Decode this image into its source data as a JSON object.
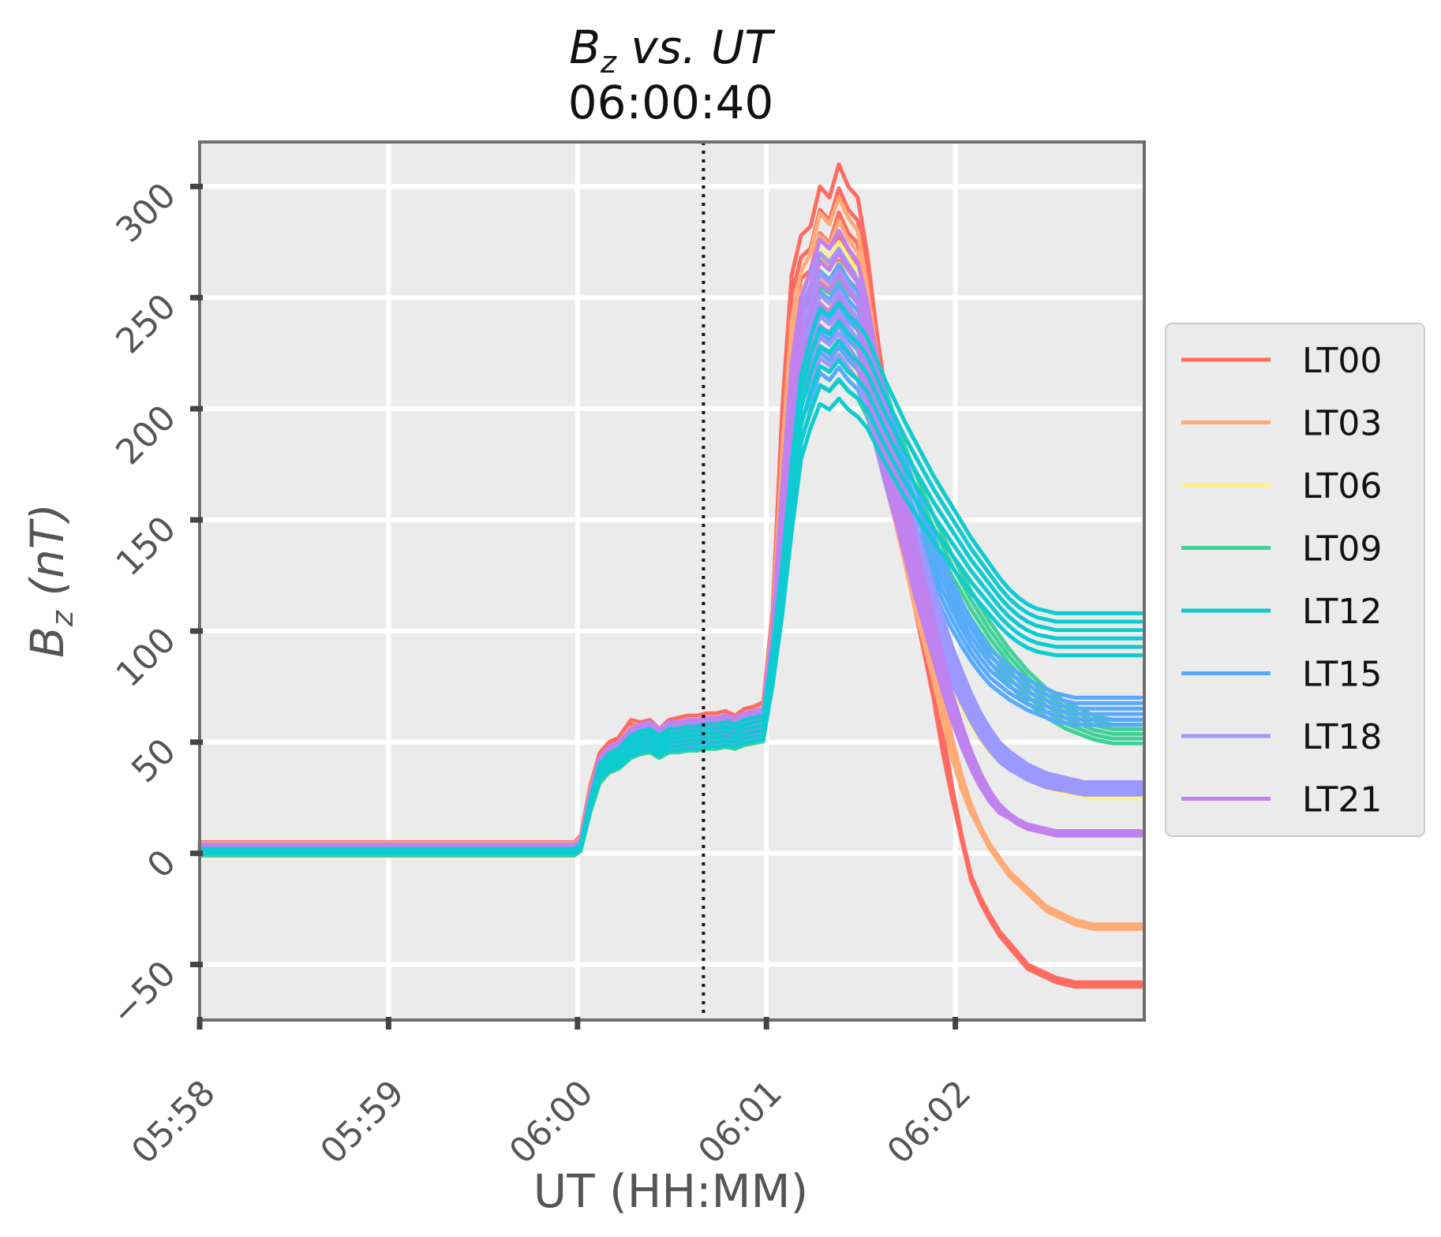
{
  "chart_data": {
    "type": "line",
    "title": "B_z vs. UT",
    "title_main": "B",
    "title_sub": "z",
    "title_rest": " vs.  UT",
    "subtitle": "06:00:40",
    "xlabel": "UT (HH:MM)",
    "ylabel": "B_z (nT)",
    "ylabel_main": "B",
    "ylabel_sub": "z",
    "ylabel_rest": " (nT)",
    "xlim": [
      0,
      300
    ],
    "ylim": [
      -75,
      320
    ],
    "x_units": "seconds since 05:58:00",
    "x_ticks": [
      {
        "value": 0,
        "label": "05:58"
      },
      {
        "value": 60,
        "label": "05:59"
      },
      {
        "value": 120,
        "label": "06:00"
      },
      {
        "value": 180,
        "label": "06:01"
      },
      {
        "value": 240,
        "label": "06:02"
      }
    ],
    "y_ticks": [
      {
        "value": -50,
        "label": "−50"
      },
      {
        "value": 0,
        "label": "0"
      },
      {
        "value": 50,
        "label": "50"
      },
      {
        "value": 100,
        "label": "100"
      },
      {
        "value": 150,
        "label": "150"
      },
      {
        "value": 200,
        "label": "200"
      },
      {
        "value": 250,
        "label": "250"
      },
      {
        "value": 300,
        "label": "300"
      }
    ],
    "vline": {
      "x": 160,
      "label": "06:00:40",
      "style": "dotted",
      "color": "#111111"
    },
    "grid": true,
    "background": "#ebebeb",
    "legend_position": "right-center",
    "series_x": [
      0,
      60,
      119,
      121,
      124,
      127,
      130,
      133,
      137,
      140,
      143,
      146,
      149,
      152,
      155,
      158,
      161,
      164,
      167,
      170,
      173,
      176,
      179,
      182,
      185,
      188,
      191,
      194,
      197,
      200,
      203,
      206,
      209,
      212,
      215,
      218,
      221,
      224,
      227,
      230,
      233,
      236,
      239,
      242,
      245,
      248,
      251,
      254,
      257,
      260,
      263,
      266,
      269,
      272,
      275,
      278,
      281,
      284,
      287,
      290,
      293,
      296,
      299
    ],
    "series": [
      {
        "name": "LT00",
        "color": "#ff6b61",
        "values": [
          5,
          5,
          5,
          8,
          30,
          45,
          50,
          52,
          60,
          59,
          60,
          56,
          60,
          61,
          62,
          62,
          63,
          63,
          64,
          62,
          65,
          66,
          68,
          110,
          200,
          260,
          278,
          282,
          300,
          295,
          310,
          300,
          295,
          270,
          235,
          205,
          185,
          160,
          135,
          110,
          85,
          55,
          30,
          8,
          -10,
          -20,
          -28,
          -35,
          -40,
          -45,
          -50,
          -52,
          -54,
          -56,
          -57,
          -58,
          -58,
          -58,
          -58,
          -58,
          -58,
          -58,
          -58
        ]
      },
      {
        "name": "LT03",
        "color": "#ffab78",
        "values": [
          4.5,
          4.5,
          4.5,
          7,
          28,
          43,
          48,
          50,
          57,
          57,
          58,
          55,
          58,
          59,
          60,
          60,
          61,
          61,
          62,
          61,
          63,
          64,
          66,
          105,
          180,
          240,
          262,
          270,
          288,
          283,
          295,
          286,
          280,
          255,
          225,
          200,
          180,
          158,
          135,
          115,
          95,
          72,
          52,
          35,
          22,
          12,
          4,
          -2,
          -8,
          -12,
          -16,
          -20,
          -24,
          -26,
          -28,
          -30,
          -31,
          -32,
          -32,
          -32,
          -32,
          -32,
          -32
        ]
      },
      {
        "name": "LT06",
        "color": "#fff085",
        "values": [
          4,
          4,
          4,
          6,
          26,
          42,
          47,
          49,
          55,
          56,
          57,
          54,
          57,
          58,
          59,
          59,
          60,
          60,
          61,
          60,
          62,
          63,
          64,
          100,
          160,
          215,
          245,
          255,
          272,
          268,
          275,
          268,
          262,
          245,
          220,
          200,
          182,
          165,
          150,
          135,
          120,
          105,
          92,
          80,
          70,
          62,
          55,
          50,
          46,
          43,
          40,
          38,
          36,
          34,
          33,
          32,
          31,
          30,
          30,
          30,
          30,
          30,
          30
        ]
      },
      {
        "name": "LT09",
        "color": "#3fd197",
        "values": [
          1,
          1,
          1,
          3,
          22,
          38,
          44,
          46,
          52,
          54,
          55,
          52,
          55,
          55,
          56,
          56,
          57,
          57,
          58,
          57,
          59,
          60,
          61,
          95,
          140,
          190,
          225,
          240,
          255,
          252,
          258,
          252,
          248,
          238,
          222,
          208,
          195,
          183,
          172,
          162,
          152,
          143,
          134,
          126,
          118,
          111,
          104,
          98,
          92,
          87,
          82,
          78,
          74,
          71,
          68,
          66,
          64,
          62,
          61,
          60,
          60,
          60,
          60
        ]
      },
      {
        "name": "LT12",
        "color": "#0ecbd2",
        "values": [
          2,
          2,
          2,
          4,
          24,
          40,
          45,
          47,
          53,
          55,
          56,
          53,
          56,
          56,
          57,
          57,
          58,
          58,
          59,
          58,
          60,
          61,
          62,
          92,
          130,
          175,
          215,
          232,
          245,
          242,
          248,
          242,
          238,
          232,
          222,
          212,
          203,
          194,
          186,
          178,
          170,
          163,
          156,
          149,
          142,
          136,
          130,
          124,
          119,
          115,
          112,
          110,
          109,
          108,
          108,
          108,
          108,
          108,
          108,
          108,
          108,
          108,
          108
        ]
      },
      {
        "name": "LT15",
        "color": "#57aafe",
        "values": [
          2.5,
          2.5,
          2.5,
          5,
          25,
          41,
          46,
          48,
          54,
          56,
          57,
          54,
          57,
          57,
          58,
          58,
          59,
          59,
          60,
          59,
          61,
          62,
          63,
          98,
          150,
          200,
          235,
          248,
          262,
          258,
          265,
          258,
          253,
          240,
          222,
          206,
          192,
          178,
          166,
          154,
          143,
          132,
          122,
          113,
          105,
          98,
          92,
          88,
          84,
          81,
          78,
          76,
          74,
          72,
          71,
          70,
          70,
          70,
          70,
          70,
          70,
          70,
          70
        ]
      },
      {
        "name": "LT18",
        "color": "#9b98ff",
        "values": [
          3,
          3,
          3,
          5,
          26,
          42,
          47,
          49,
          55,
          57,
          58,
          55,
          58,
          58,
          59,
          59,
          60,
          60,
          61,
          60,
          62,
          63,
          64,
          100,
          160,
          212,
          245,
          256,
          270,
          266,
          272,
          265,
          258,
          242,
          220,
          200,
          182,
          165,
          150,
          135,
          120,
          106,
          93,
          82,
          72,
          63,
          56,
          50,
          46,
          43,
          40,
          38,
          36,
          35,
          34,
          33,
          32,
          32,
          32,
          32,
          32,
          32,
          32
        ]
      },
      {
        "name": "LT21",
        "color": "#c082ee",
        "values": [
          4,
          4,
          4,
          6,
          27,
          43,
          48,
          50,
          56,
          58,
          59,
          56,
          59,
          59,
          60,
          60,
          61,
          61,
          62,
          61,
          63,
          64,
          65,
          102,
          165,
          220,
          250,
          262,
          276,
          272,
          280,
          272,
          266,
          248,
          224,
          202,
          182,
          162,
          142,
          124,
          106,
          88,
          72,
          58,
          46,
          36,
          28,
          22,
          18,
          15,
          13,
          12,
          11,
          10,
          10,
          10,
          10,
          10,
          10,
          10,
          10,
          10,
          10
        ]
      }
    ]
  }
}
